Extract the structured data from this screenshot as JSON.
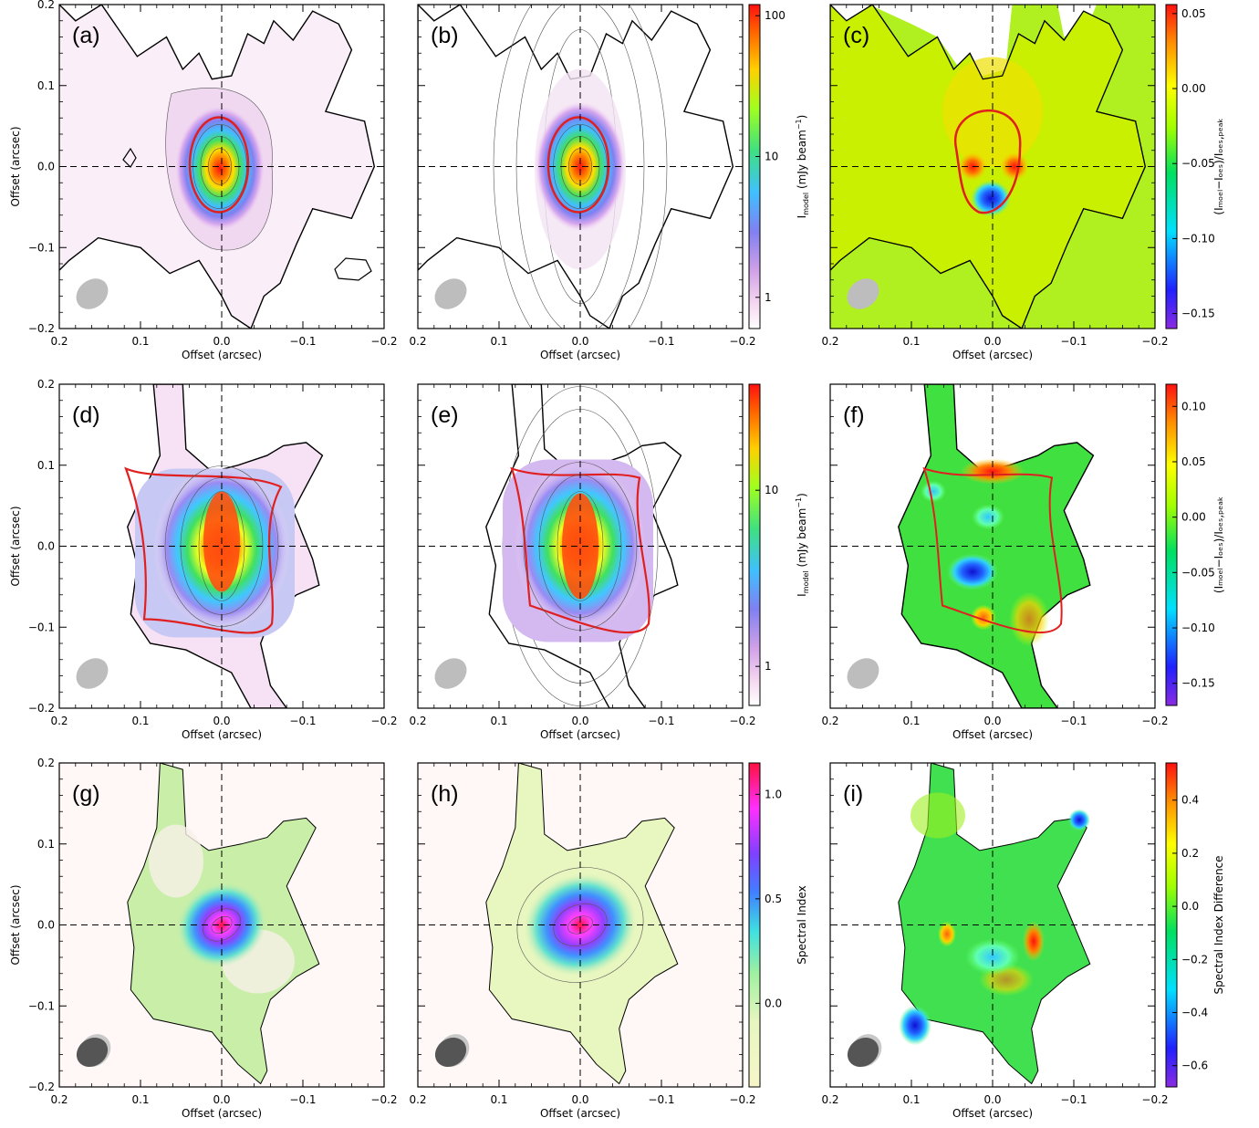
{
  "figure": {
    "colors": {
      "background_model": "#fff8f6",
      "data_outline": "#000000",
      "red_contour": "#e02020",
      "thin_contour": "#555555",
      "beam": "#bdbdbd",
      "beam_dark": "#555555"
    }
  },
  "colorbars": [
    {
      "id": "cb-row1-model",
      "scale": "log",
      "range": [
        0.6,
        120
      ],
      "ticks": [
        {
          "value": 1,
          "label": "1"
        },
        {
          "value": 10,
          "label": "10"
        },
        {
          "value": 100,
          "label": "100"
        }
      ],
      "label_main": "I",
      "label_sub": "model",
      "label_rest": " (mJy beam",
      "label_sup": "−1",
      "label_end": ")",
      "colormap": "rainbow_white"
    },
    {
      "id": "cb-row1-resid",
      "scale": "linear",
      "range": [
        -0.16,
        0.056
      ],
      "ticks": [
        {
          "value": 0.05,
          "label": "0.05"
        },
        {
          "value": 0.0,
          "label": "0.00"
        },
        {
          "value": -0.05,
          "label": "−0.05"
        },
        {
          "value": -0.1,
          "label": "−0.10"
        },
        {
          "value": -0.15,
          "label": "−0.15"
        }
      ],
      "label_text": "(Iₘₒₑₗ−Iₒₑₛ)/Iₒₑₛ,ₚₑₐₖ",
      "colormap": "rainbow"
    },
    {
      "id": "cb-row2-model",
      "scale": "log",
      "range": [
        0.6,
        40
      ],
      "ticks": [
        {
          "value": 1,
          "label": "1"
        },
        {
          "value": 10,
          "label": "10"
        }
      ],
      "label_main": "I",
      "label_sub": "model",
      "label_rest": " (mJy beam",
      "label_sup": "−1",
      "label_end": ")",
      "colormap": "rainbow_white"
    },
    {
      "id": "cb-row2-resid",
      "scale": "linear",
      "range": [
        -0.17,
        0.12
      ],
      "ticks": [
        {
          "value": 0.1,
          "label": "0.10"
        },
        {
          "value": 0.05,
          "label": "0.05"
        },
        {
          "value": 0.0,
          "label": "0.00"
        },
        {
          "value": -0.05,
          "label": "−0.05"
        },
        {
          "value": -0.1,
          "label": "−0.10"
        },
        {
          "value": -0.15,
          "label": "−0.15"
        }
      ],
      "label_text": "(Iₘₒₑₗ−Iₒₑₛ)/Iₒₑₛ,ₚₑₐₖ",
      "colormap": "rainbow"
    },
    {
      "id": "cb-row3-index",
      "scale": "linear",
      "range": [
        -0.4,
        1.15
      ],
      "ticks": [
        {
          "value": 1.0,
          "label": "1.0"
        },
        {
          "value": 0.5,
          "label": "0.5"
        },
        {
          "value": 0.0,
          "label": "0.0"
        }
      ],
      "label_text": "Spectral Index",
      "colormap": "index"
    },
    {
      "id": "cb-row3-diff",
      "scale": "linear",
      "range": [
        -0.68,
        0.54
      ],
      "ticks": [
        {
          "value": 0.4,
          "label": "0.4"
        },
        {
          "value": 0.2,
          "label": "0.2"
        },
        {
          "value": 0.0,
          "label": "0.0"
        },
        {
          "value": -0.2,
          "label": "−0.2"
        },
        {
          "value": -0.4,
          "label": "−0.4"
        },
        {
          "value": -0.6,
          "label": "−0.6"
        }
      ],
      "label_text": "Spectral Index Difference",
      "colormap": "rainbow"
    }
  ],
  "chart_data": [
    {
      "panel": "(a)",
      "type": "heatmap",
      "xlabel": "Offset (arcsec)",
      "ylabel": "Offset (arcsec)",
      "xlim": [
        0.2,
        -0.2
      ],
      "ylim": [
        -0.2,
        0.2
      ],
      "x_ticks": [
        "0.2",
        "0.1",
        "0.0",
        "−0.1",
        "−0.2"
      ],
      "y_ticks": [
        "0.2",
        "0.1",
        "0.0",
        "−0.1",
        "−0.2"
      ],
      "peak_offset": [
        0.0,
        0.0
      ]
    },
    {
      "panel": "(b)",
      "type": "heatmap",
      "xlabel": "Offset (arcsec)",
      "ylabel": "",
      "xlim": [
        0.2,
        -0.2
      ],
      "ylim": [
        -0.2,
        0.2
      ],
      "x_ticks": [
        "0.2",
        "0.1",
        "0.0",
        "−0.1",
        "−0.2"
      ],
      "peak_offset": [
        0.0,
        0.0
      ]
    },
    {
      "panel": "(c)",
      "type": "heatmap",
      "xlabel": "Offset (arcsec)",
      "ylabel": "",
      "xlim": [
        0.2,
        -0.2
      ],
      "ylim": [
        -0.2,
        0.2
      ],
      "x_ticks": [
        "0.2",
        "0.1",
        "0.0",
        "−0.1",
        "−0.2"
      ]
    },
    {
      "panel": "(d)",
      "type": "heatmap",
      "xlabel": "Offset (arcsec)",
      "ylabel": "Offset (arcsec)",
      "xlim": [
        0.2,
        -0.2
      ],
      "ylim": [
        -0.2,
        0.2
      ],
      "x_ticks": [
        "0.2",
        "0.1",
        "0.0",
        "−0.1",
        "−0.2"
      ],
      "y_ticks": [
        "0.2",
        "0.1",
        "0.0",
        "−0.1",
        "−0.2"
      ]
    },
    {
      "panel": "(e)",
      "type": "heatmap",
      "xlabel": "Offset (arcsec)",
      "ylabel": "",
      "xlim": [
        0.2,
        -0.2
      ],
      "ylim": [
        -0.2,
        0.2
      ],
      "x_ticks": [
        "0.2",
        "0.1",
        "0.0",
        "−0.1",
        "−0.2"
      ]
    },
    {
      "panel": "(f)",
      "type": "heatmap",
      "xlabel": "Offset (arcsec)",
      "ylabel": "",
      "xlim": [
        0.2,
        -0.2
      ],
      "ylim": [
        -0.2,
        0.2
      ],
      "x_ticks": [
        "0.2",
        "0.1",
        "0.0",
        "−0.1",
        "−0.2"
      ]
    },
    {
      "panel": "(g)",
      "type": "heatmap",
      "xlabel": "Offset (arcsec)",
      "ylabel": "Offset (arcsec)",
      "xlim": [
        0.2,
        -0.2
      ],
      "ylim": [
        -0.2,
        0.2
      ],
      "x_ticks": [
        "0.2",
        "0.1",
        "0.0",
        "−0.1",
        "−0.2"
      ],
      "y_ticks": [
        "0.2",
        "0.1",
        "0.0",
        "−0.1",
        "−0.2"
      ]
    },
    {
      "panel": "(h)",
      "type": "heatmap",
      "xlabel": "Offset (arcsec)",
      "ylabel": "",
      "xlim": [
        0.2,
        -0.2
      ],
      "ylim": [
        -0.2,
        0.2
      ],
      "x_ticks": [
        "0.2",
        "0.1",
        "0.0",
        "−0.1",
        "−0.2"
      ]
    },
    {
      "panel": "(i)",
      "type": "heatmap",
      "xlabel": "Offset (arcsec)",
      "ylabel": "",
      "xlim": [
        0.2,
        -0.2
      ],
      "ylim": [
        -0.2,
        0.2
      ],
      "x_ticks": [
        "0.2",
        "0.1",
        "0.0",
        "−0.1",
        "−0.2"
      ]
    }
  ]
}
